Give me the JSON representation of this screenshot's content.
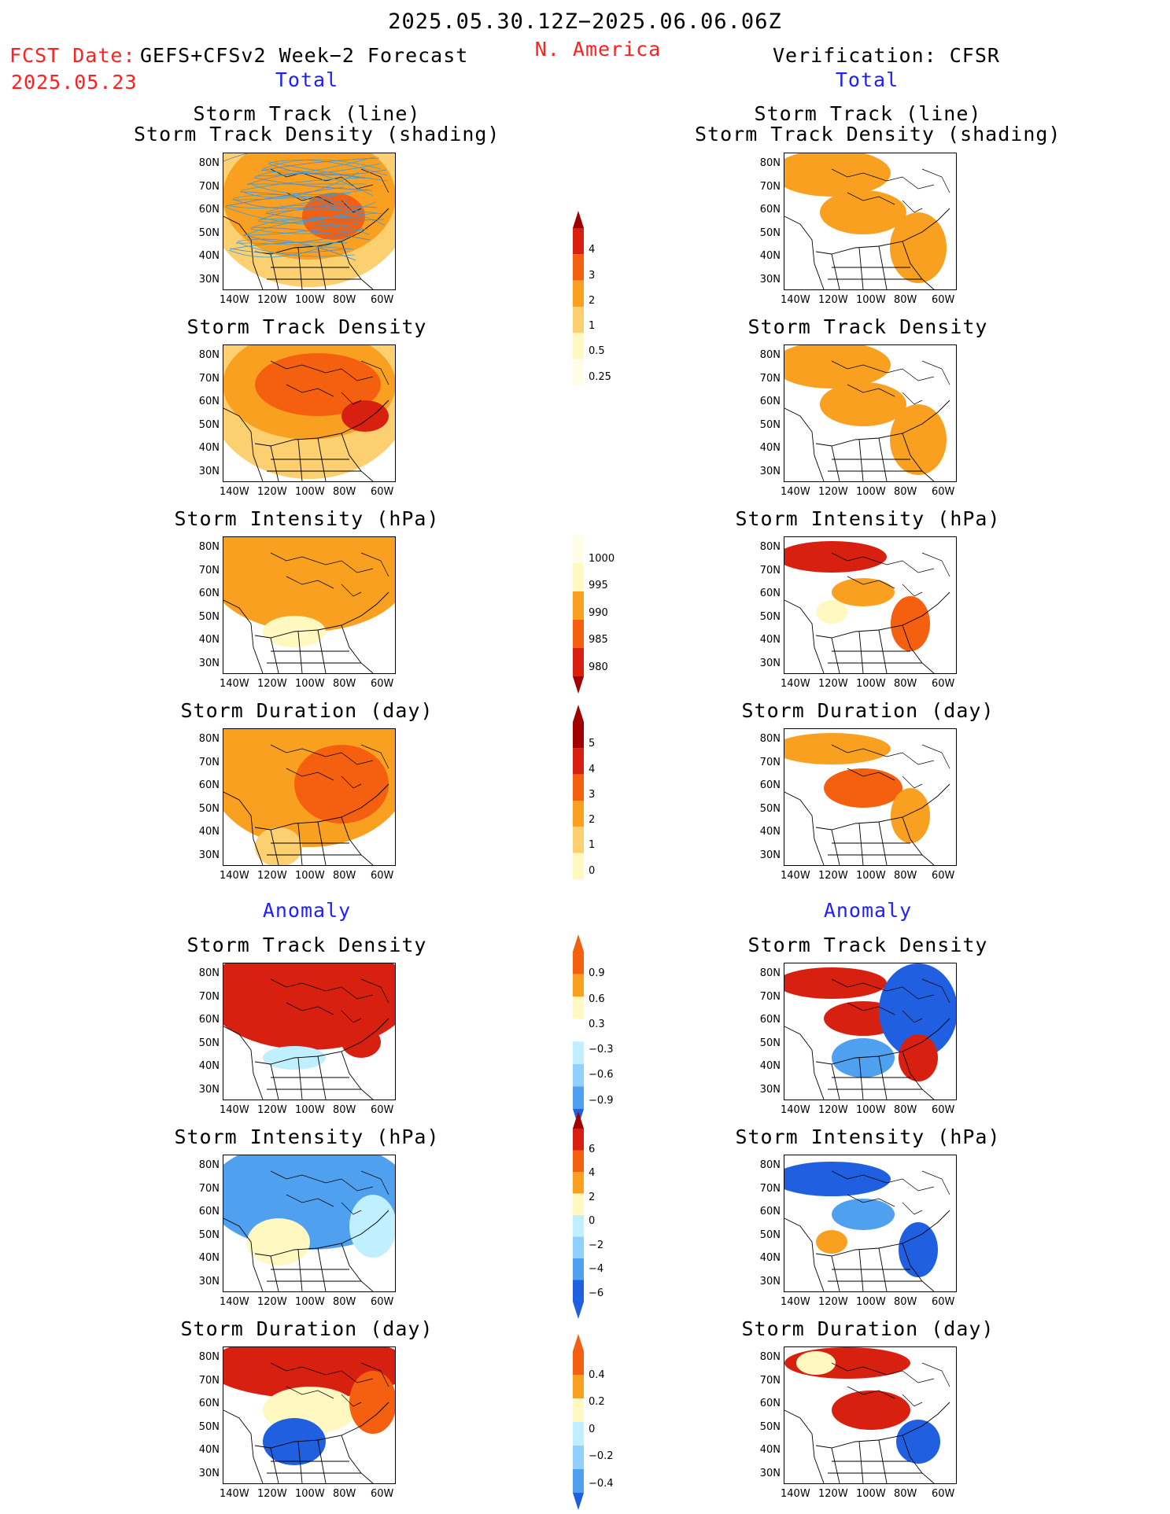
{
  "header": {
    "period": "2025.05.30.12Z−2025.06.06.06Z",
    "region": "N. America",
    "fcst_label": "FCST Date:",
    "fcst_model": "GEFS+CFSv2 Week−2 Forecast",
    "fcst_date": "2025.05.23",
    "verification": "Verification: CFSR"
  },
  "sections": {
    "total": "Total",
    "anomaly": "Anomaly"
  },
  "panel_titles": {
    "track_line": "Storm Track (line)",
    "track_density_shading": "Storm Track Density (shading)",
    "track_density": "Storm Track Density",
    "intensity": "Storm Intensity (hPa)",
    "duration": "Storm Duration (day)"
  },
  "axes": {
    "lat_labels": [
      "80N",
      "70N",
      "60N",
      "50N",
      "40N",
      "30N"
    ],
    "lon_labels": [
      "140W",
      "120W",
      "100W",
      "80W",
      "60W"
    ]
  },
  "colorbars": {
    "density_total": [
      "4",
      "3",
      "2",
      "1",
      "0.5",
      "0.25"
    ],
    "intensity_total": [
      "1000",
      "995",
      "990",
      "985",
      "980"
    ],
    "duration_total": [
      "5",
      "4",
      "3",
      "2",
      "1",
      "0"
    ],
    "density_anom": [
      "0.9",
      "0.6",
      "0.3",
      "−0.3",
      "−0.6",
      "−0.9"
    ],
    "intensity_anom": [
      "6",
      "4",
      "2",
      "0",
      "−2",
      "−4",
      "−6"
    ],
    "duration_anom": [
      "0.4",
      "0.2",
      "0",
      "−0.2",
      "−0.4"
    ]
  },
  "colors": {
    "title_red": "#ff2020",
    "title_blue": "#2020ff",
    "warm": [
      "#fff8c0",
      "#fcd070",
      "#f9a020",
      "#f46010",
      "#d82010",
      "#a00000"
    ],
    "cool": [
      "#c0f0ff",
      "#90d0ff",
      "#50a0f0",
      "#2060e0"
    ]
  }
}
